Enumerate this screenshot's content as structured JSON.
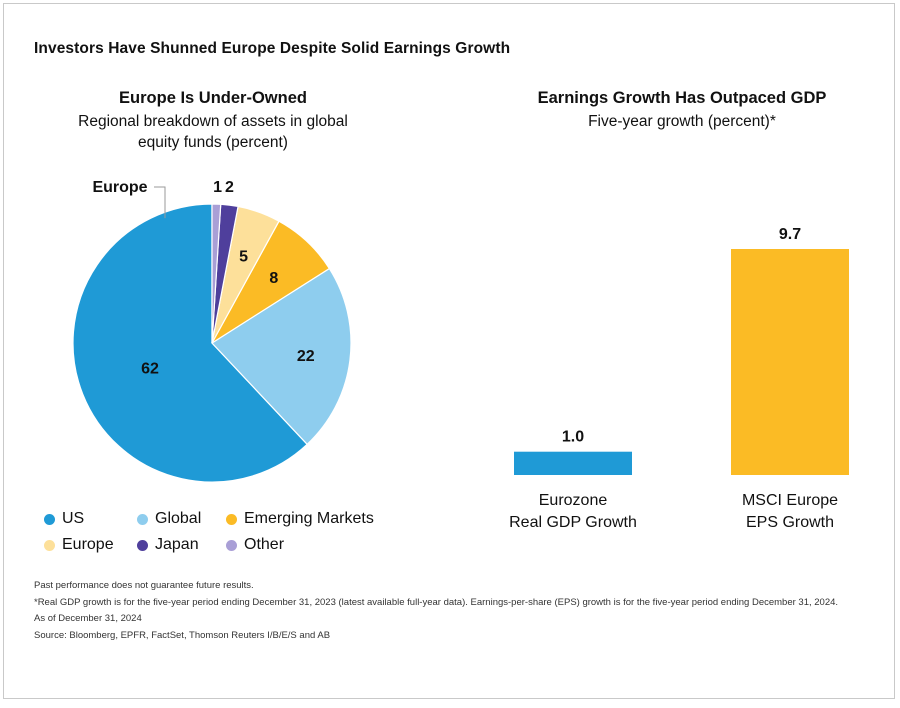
{
  "title": "Investors Have Shunned Europe Despite Solid Earnings Growth",
  "colors": {
    "us": "#1f9ad6",
    "global": "#8ecdee",
    "emerging": "#fbbb25",
    "europe": "#fde09a",
    "japan": "#4f3f9c",
    "other": "#a99fd6",
    "bar": "#1f9ad6",
    "bar_highlight": "#fbbb25"
  },
  "chart_data": [
    {
      "type": "pie",
      "title": "Europe Is Under-Owned",
      "subtitle": "Regional breakdown of assets in global equity funds (percent)",
      "slices": [
        {
          "name": "US",
          "value": 62,
          "color": "#1f9ad6",
          "label": "62"
        },
        {
          "name": "Global",
          "value": 22,
          "color": "#8ecdee",
          "label": "22"
        },
        {
          "name": "Emerging Markets",
          "value": 8,
          "color": "#fbbb25",
          "label": "8"
        },
        {
          "name": "Europe",
          "value": 5,
          "color": "#fde09a",
          "label": "5"
        },
        {
          "name": "Japan",
          "value": 2,
          "color": "#4f3f9c",
          "label": "2"
        },
        {
          "name": "Other",
          "value": 1,
          "color": "#a99fd6",
          "label": "1"
        }
      ],
      "callout": "Europe"
    },
    {
      "type": "bar",
      "title": "Earnings Growth Has Outpaced GDP",
      "subtitle": "Five-year growth (percent)*",
      "categories": [
        "Eurozone Real GDP Growth",
        "MSCI Europe EPS Growth"
      ],
      "category_lines": [
        [
          "Eurozone",
          "Real GDP Growth"
        ],
        [
          "MSCI Europe",
          "EPS Growth"
        ]
      ],
      "values": [
        1.0,
        9.7
      ],
      "value_labels": [
        "1.0",
        "9.7"
      ],
      "bar_colors": [
        "#1f9ad6",
        "#fbbb25"
      ],
      "ylim": [
        0,
        9.7
      ]
    }
  ],
  "legend": [
    {
      "label": "US",
      "color": "#1f9ad6"
    },
    {
      "label": "Global",
      "color": "#8ecdee"
    },
    {
      "label": "Emerging Markets",
      "color": "#fbbb25"
    },
    {
      "label": "Europe",
      "color": "#fde09a"
    },
    {
      "label": "Japan",
      "color": "#4f3f9c"
    },
    {
      "label": "Other",
      "color": "#a99fd6"
    }
  ],
  "notes": [
    "Past performance does not guarantee future results.",
    "*Real GDP growth is for the five-year period ending December 31, 2023 (latest available full-year data). Earnings-per-share (EPS) growth is for the five-year period ending December 31, 2024.",
    "As of December 31, 2024",
    "Source: Bloomberg, EPFR, FactSet, Thomson Reuters I/B/E/S and AB"
  ]
}
